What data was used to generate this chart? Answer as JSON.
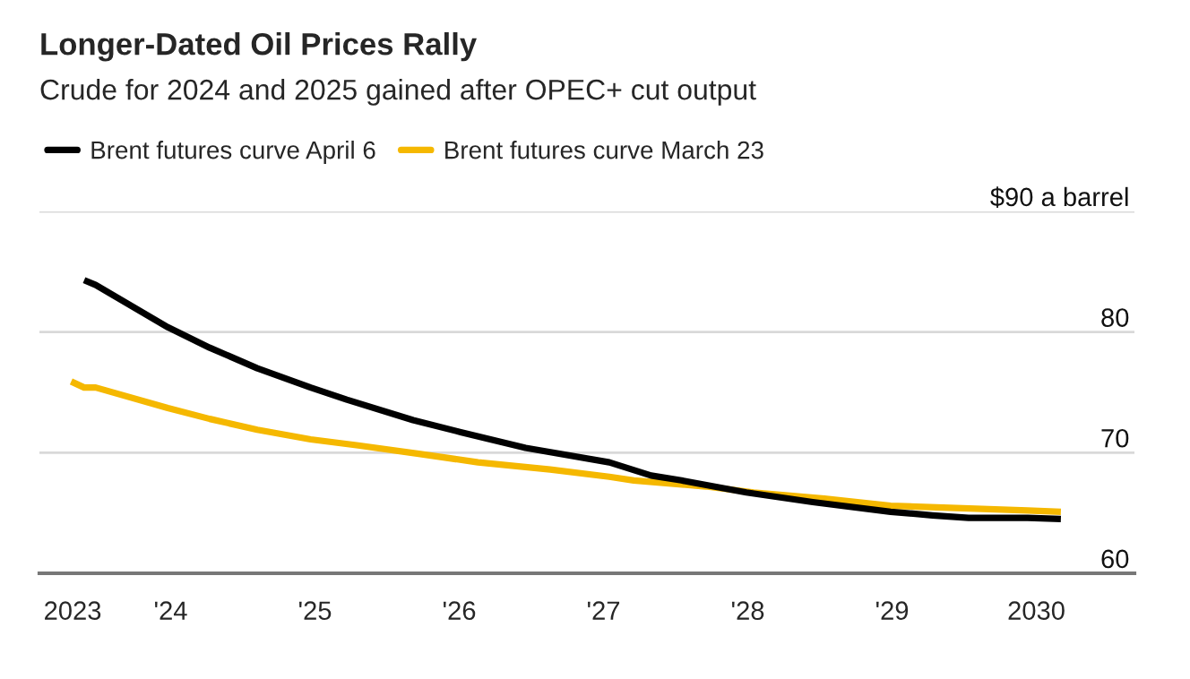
{
  "chart_data": {
    "type": "line",
    "title": "Longer-Dated Oil Prices Rally",
    "subtitle": "Crude for 2024 and 2025 gained after OPEC+ cut output",
    "series": [
      {
        "name": "Brent futures curve April 6",
        "color": "#000000",
        "x": [
          2023.4,
          2023.48,
          2023.98,
          2024.27,
          2024.6,
          2024.97,
          2025.22,
          2025.68,
          2026.01,
          2026.46,
          2027.04,
          2027.33,
          2027.54,
          2027.99,
          2028.45,
          2028.99,
          2029.28,
          2029.53,
          2029.94,
          2030.17
        ],
        "values": [
          84.3,
          83.9,
          80.4,
          78.7,
          77.0,
          75.4,
          74.4,
          72.7,
          71.7,
          70.4,
          69.2,
          68.1,
          67.7,
          66.7,
          65.9,
          65.1,
          64.8,
          64.6,
          64.6,
          64.5
        ]
      },
      {
        "name": "Brent futures curve March 23",
        "color": "#f5b800",
        "x": [
          2023.31,
          2023.4,
          2023.48,
          2023.98,
          2024.27,
          2024.6,
          2024.97,
          2025.3,
          2025.72,
          2026.13,
          2026.63,
          2027.04,
          2027.21,
          2027.71,
          2028.04,
          2028.53,
          2028.99,
          2029.49,
          2029.94,
          2030.17
        ],
        "values": [
          75.9,
          75.4,
          75.4,
          73.7,
          72.8,
          71.9,
          71.1,
          70.6,
          69.9,
          69.2,
          68.6,
          68.0,
          67.7,
          67.2,
          66.7,
          66.2,
          65.6,
          65.4,
          65.2,
          65.1
        ]
      }
    ],
    "xlim": [
      2023.09,
      2030.68
    ],
    "ylim": [
      60,
      90
    ],
    "xticks": [
      {
        "value": 2023.32,
        "label": "2023"
      },
      {
        "value": 2024,
        "label": "'24"
      },
      {
        "value": 2025,
        "label": "'25"
      },
      {
        "value": 2026,
        "label": "'26"
      },
      {
        "value": 2027,
        "label": "'27"
      },
      {
        "value": 2028,
        "label": "'28"
      },
      {
        "value": 2029,
        "label": "'29"
      },
      {
        "value": 2030,
        "label": "2030"
      }
    ],
    "yticks": [
      60,
      70,
      80,
      {
        "value": 90,
        "label": "$90 a barrel"
      }
    ],
    "grid": "y",
    "legend": "top left",
    "marker": "none",
    "line_style": "solid"
  }
}
